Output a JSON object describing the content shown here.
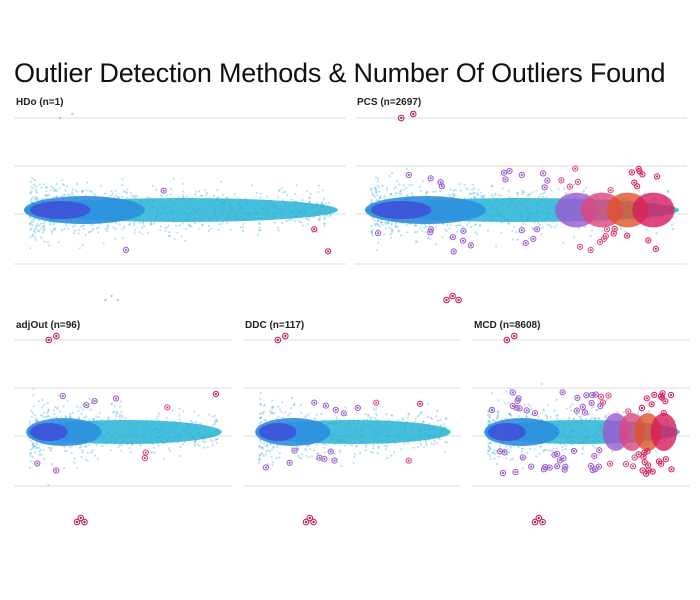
{
  "title": "Outlier Detection Methods & Number Of Outliers Found",
  "colors": {
    "grid": "#dddddd",
    "normal_point": "#3aa9d9",
    "outlier_ring": "#c2185b",
    "density_core": "#3f51d8",
    "density_mid": "#2b8fde",
    "density_outer": "#27b3d6",
    "band_purple": "#9b59d0",
    "band_pink": "#e0457b",
    "band_orange": "#e0532a",
    "band_red": "#d81b60"
  },
  "chart_data": [
    {
      "type": "scatter",
      "title": "HDo (n=1)",
      "method": "HDo",
      "outliers": 1,
      "outlier_level": 0.0
    },
    {
      "type": "scatter",
      "title": "PCS (n=2697)",
      "method": "PCS",
      "outliers": 2697,
      "outlier_level": 0.6
    },
    {
      "type": "scatter",
      "title": "adjOut (n=96)",
      "method": "adjOut",
      "outliers": 96,
      "outlier_level": 0.08
    },
    {
      "type": "scatter",
      "title": "DDC (n=117)",
      "method": "DDC",
      "outliers": 117,
      "outlier_level": 0.15
    },
    {
      "type": "scatter",
      "title": "MCD (n=8608)",
      "method": "MCD",
      "outliers": 8608,
      "outlier_level": 1.0
    }
  ]
}
